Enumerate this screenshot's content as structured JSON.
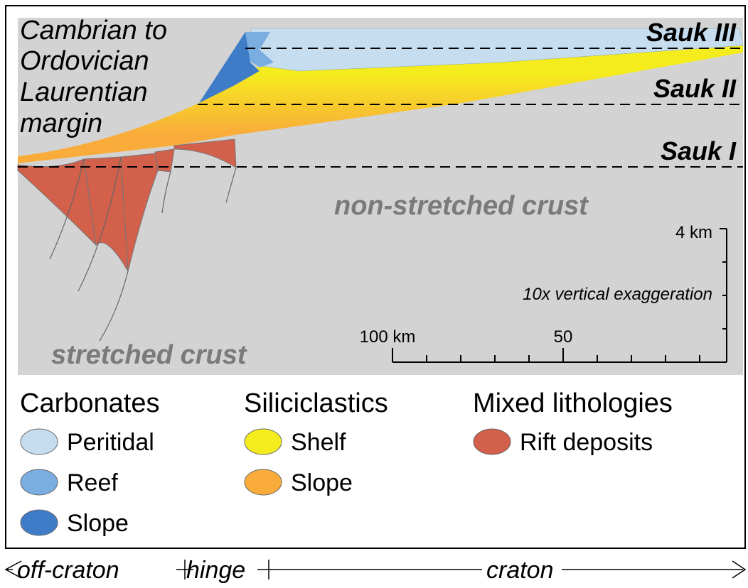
{
  "title": {
    "lines": [
      "Cambrian to",
      "Ordovician",
      "Laurentian",
      "margin"
    ]
  },
  "sequences": [
    "Sauk III",
    "Sauk II",
    "Sauk I"
  ],
  "labels": {
    "non_stretched": "non-stretched crust",
    "stretched": "stretched crust"
  },
  "scale": {
    "vertical": "4 km",
    "exaggeration": "10x vertical exaggeration",
    "horizontal_left": "100 km",
    "horizontal_mid": "50"
  },
  "legend": {
    "groups": [
      {
        "title": "Carbonates",
        "items": [
          {
            "label": "Peritidal",
            "color": "#c6ddf0"
          },
          {
            "label": "Reef",
            "color": "#7aaee0"
          },
          {
            "label": "Slope",
            "color": "#3f7cc8"
          }
        ]
      },
      {
        "title": "Siliciclastics",
        "items": [
          {
            "label": "Shelf",
            "color": "#f5ec1e"
          },
          {
            "label": "Slope",
            "color": "#f9ac3a"
          }
        ]
      },
      {
        "title": "Mixed lithologies",
        "items": [
          {
            "label": "Rift deposits",
            "color": "#d2604a"
          }
        ]
      }
    ]
  },
  "zones": [
    "off-craton",
    "hinge",
    "craton"
  ]
}
